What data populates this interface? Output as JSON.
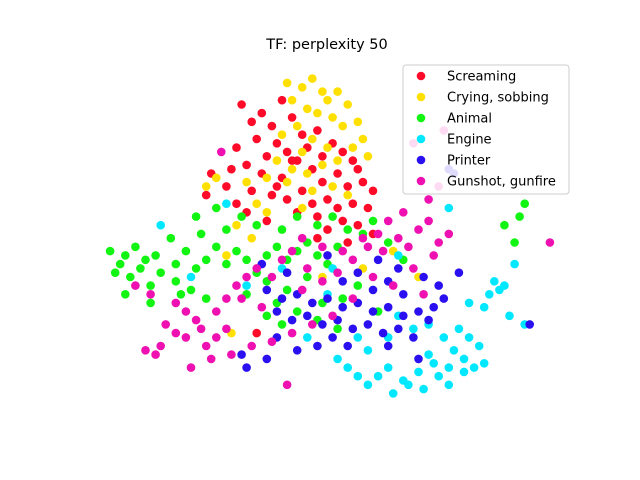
{
  "chart_data": {
    "type": "scatter",
    "title": "TF: perplexity 50",
    "xlabel": "",
    "ylabel": "",
    "axes_visible": false,
    "grid": false,
    "legend_position": "top-right",
    "xlim": [
      -45,
      45
    ],
    "ylim": [
      -40,
      40
    ],
    "series": [
      {
        "name": "Screaming",
        "color": "#ff0a28",
        "points": [
          [
            -17,
            32
          ],
          [
            -13,
            30
          ],
          [
            -9,
            33
          ],
          [
            -15,
            28
          ],
          [
            -11,
            27
          ],
          [
            -7,
            29
          ],
          [
            -5,
            25
          ],
          [
            -10,
            23
          ],
          [
            -14,
            24
          ],
          [
            -18,
            22
          ],
          [
            -12,
            20
          ],
          [
            -8,
            21
          ],
          [
            -4,
            22
          ],
          [
            -2,
            26
          ],
          [
            -6,
            19
          ],
          [
            -3,
            17
          ],
          [
            -9,
            15
          ],
          [
            -13,
            16
          ],
          [
            -16,
            18
          ],
          [
            -1,
            20
          ],
          [
            1,
            23
          ],
          [
            3,
            21
          ],
          [
            5,
            19
          ],
          [
            2,
            16
          ],
          [
            -1,
            14
          ],
          [
            4,
            13
          ],
          [
            7,
            14
          ],
          [
            6,
            17
          ],
          [
            9,
            12
          ],
          [
            -5,
            12
          ],
          [
            -8,
            10
          ],
          [
            -11,
            11
          ],
          [
            -3,
            9
          ],
          [
            0,
            10
          ],
          [
            2,
            8
          ],
          [
            5,
            9
          ],
          [
            8,
            8
          ],
          [
            -6,
            7
          ],
          [
            -2,
            6
          ],
          [
            3,
            5
          ],
          [
            -10,
            13
          ],
          [
            -15,
            12
          ],
          [
            -20,
            13
          ],
          [
            -23,
            16
          ],
          [
            -24,
            11
          ],
          [
            -18,
            9
          ],
          [
            -16,
            7
          ],
          [
            -12,
            5
          ],
          [
            0,
            3
          ],
          [
            6,
            4
          ],
          [
            9,
            2
          ],
          [
            -2,
            1
          ],
          [
            4,
            0
          ],
          [
            -14,
            -21
          ],
          [
            -7,
            19
          ],
          [
            -19,
            17
          ]
        ]
      },
      {
        "name": "Crying, sobbing",
        "color": "#ffe000",
        "points": [
          [
            -8,
            37
          ],
          [
            -5,
            36
          ],
          [
            -3,
            38
          ],
          [
            -1,
            35
          ],
          [
            -7,
            33
          ],
          [
            -4,
            31
          ],
          [
            0,
            33
          ],
          [
            2,
            35
          ],
          [
            4,
            32
          ],
          [
            -2,
            30
          ],
          [
            1,
            29
          ],
          [
            3,
            27
          ],
          [
            -6,
            27
          ],
          [
            -9,
            25
          ],
          [
            -3,
            24
          ],
          [
            0,
            22
          ],
          [
            2,
            19
          ],
          [
            -1,
            18
          ],
          [
            -4,
            16
          ],
          [
            -7,
            17
          ],
          [
            -10,
            19
          ],
          [
            -12,
            15
          ],
          [
            6,
            28
          ],
          [
            7,
            24
          ],
          [
            5,
            22
          ],
          [
            8,
            20
          ],
          [
            -5,
            21
          ],
          [
            -8,
            14
          ],
          [
            -3,
            12
          ],
          [
            1,
            13
          ],
          [
            -16,
            14
          ],
          [
            -22,
            15
          ],
          [
            -24,
            13
          ],
          [
            -14,
            9
          ],
          [
            -12,
            7
          ],
          [
            -5,
            8
          ],
          [
            4,
            11
          ],
          [
            -18,
            4
          ],
          [
            -20,
            -3
          ],
          [
            -15,
            1
          ],
          [
            -1,
            -8
          ],
          [
            7,
            -6
          ],
          [
            13,
            -2
          ],
          [
            18,
            -8
          ],
          [
            -19,
            -21
          ]
        ]
      },
      {
        "name": "Animal",
        "color": "#12f512",
        "points": [
          [
            -43,
            -2
          ],
          [
            -40,
            -3
          ],
          [
            -41,
            -5
          ],
          [
            -38,
            -1
          ],
          [
            -36,
            -4
          ],
          [
            -42,
            -7
          ],
          [
            -39,
            -8
          ],
          [
            -37,
            -6
          ],
          [
            -34,
            -3
          ],
          [
            -33,
            -7
          ],
          [
            -30,
            -5
          ],
          [
            -28,
            -2
          ],
          [
            -26,
            -6
          ],
          [
            -24,
            -4
          ],
          [
            -22,
            -1
          ],
          [
            -20,
            -5
          ],
          [
            -18,
            -2
          ],
          [
            -16,
            -4
          ],
          [
            -14,
            -7
          ],
          [
            -12,
            -3
          ],
          [
            -10,
            -1
          ],
          [
            -8,
            -4
          ],
          [
            -6,
            -2
          ],
          [
            -4,
            0
          ],
          [
            -2,
            -3
          ],
          [
            0,
            -5
          ],
          [
            2,
            -1
          ],
          [
            -35,
            -10
          ],
          [
            -30,
            -9
          ],
          [
            -27,
            -11
          ],
          [
            -31,
            1
          ],
          [
            -25,
            2
          ],
          [
            -20,
            3
          ],
          [
            -17,
            6
          ],
          [
            -14,
            4
          ],
          [
            -9,
            3
          ],
          [
            -6,
            6
          ],
          [
            -2,
            4
          ],
          [
            1,
            6
          ],
          [
            4,
            3
          ],
          [
            -26,
            6
          ],
          [
            -22,
            8
          ],
          [
            -12,
            -9
          ],
          [
            -8,
            -11
          ],
          [
            -4,
            -8
          ],
          [
            -16,
            -12
          ],
          [
            -10,
            -14
          ],
          [
            -6,
            -16
          ],
          [
            -2,
            -18
          ],
          [
            -12,
            -17
          ],
          [
            3,
            -13
          ],
          [
            6,
            -10
          ],
          [
            2,
            -20
          ],
          [
            -1,
            -14
          ],
          [
            7,
            2
          ],
          [
            9,
            5
          ],
          [
            -40,
            -12
          ],
          [
            -35,
            -14
          ],
          [
            -29,
            -12
          ],
          [
            -24,
            -13
          ],
          [
            12,
            0
          ],
          [
            15,
            -4
          ],
          [
            35,
            4
          ],
          [
            37,
            0
          ],
          [
            38,
            6
          ],
          [
            39,
            9
          ],
          [
            -9,
            -19
          ],
          [
            10,
            -16
          ]
        ]
      },
      {
        "name": "Engine",
        "color": "#00e8ff",
        "points": [
          [
            -33,
            4
          ],
          [
            -20,
            9
          ],
          [
            -27,
            -8
          ],
          [
            1,
            -6
          ],
          [
            14,
            -3
          ],
          [
            24,
            8
          ],
          [
            6,
            -22
          ],
          [
            14,
            -17
          ],
          [
            20,
            -19
          ],
          [
            23,
            -22
          ],
          [
            25,
            -25
          ],
          [
            27,
            -27
          ],
          [
            24,
            -29
          ],
          [
            21,
            -28
          ],
          [
            18,
            -30
          ],
          [
            15,
            -32
          ],
          [
            12,
            -29
          ],
          [
            10,
            -31
          ],
          [
            8,
            -33
          ],
          [
            6,
            -31
          ],
          [
            4,
            -29
          ],
          [
            2,
            -27
          ],
          [
            26,
            -20
          ],
          [
            28,
            -22
          ],
          [
            30,
            -24
          ],
          [
            22,
            -31
          ],
          [
            19,
            -34
          ],
          [
            16,
            -33
          ],
          [
            13,
            -35
          ],
          [
            24,
            -33
          ],
          [
            27,
            -30
          ],
          [
            29,
            -29
          ],
          [
            31,
            -15
          ],
          [
            32,
            -12
          ],
          [
            34,
            -11
          ],
          [
            33,
            -9
          ],
          [
            35,
            -10
          ],
          [
            36,
            -17
          ],
          [
            39,
            -19
          ],
          [
            37,
            -5
          ],
          [
            28,
            -14
          ],
          [
            17,
            -20
          ],
          [
            -4,
            -22
          ],
          [
            -16,
            -10
          ],
          [
            0,
            -12
          ],
          [
            8,
            -25
          ],
          [
            31,
            -28
          ],
          [
            20,
            -26
          ],
          [
            12,
            -22
          ],
          [
            -9,
            -6
          ]
        ]
      },
      {
        "name": "Printer",
        "color": "#2a10f0",
        "points": [
          [
            -12,
            -11
          ],
          [
            -9,
            -13
          ],
          [
            -6,
            -12
          ],
          [
            -3,
            -14
          ],
          [
            0,
            -13
          ],
          [
            3,
            -15
          ],
          [
            6,
            -14
          ],
          [
            9,
            -16
          ],
          [
            12,
            -15
          ],
          [
            15,
            -17
          ],
          [
            18,
            -16
          ],
          [
            21,
            -15
          ],
          [
            -10,
            -16
          ],
          [
            -7,
            -18
          ],
          [
            -4,
            -17
          ],
          [
            -1,
            -19
          ],
          [
            2,
            -18
          ],
          [
            5,
            -20
          ],
          [
            8,
            -19
          ],
          [
            11,
            -21
          ],
          [
            14,
            -20
          ],
          [
            17,
            -22
          ],
          [
            20,
            -18
          ],
          [
            23,
            -13
          ],
          [
            3,
            -9
          ],
          [
            6,
            -7
          ],
          [
            9,
            -11
          ],
          [
            12,
            -9
          ],
          [
            15,
            -12
          ],
          [
            -2,
            -24
          ],
          [
            1,
            -22
          ],
          [
            4,
            -24
          ],
          [
            -6,
            -25
          ],
          [
            -10,
            -22
          ],
          [
            -12,
            -27
          ],
          [
            -16,
            -29
          ],
          [
            -17,
            -26
          ],
          [
            -13,
            -5
          ],
          [
            -8,
            -7
          ],
          [
            0,
            -3
          ],
          [
            10,
            -4
          ],
          [
            14,
            -6
          ],
          [
            19,
            -8
          ],
          [
            22,
            -10
          ],
          [
            26,
            -7
          ],
          [
            12,
            -24
          ],
          [
            18,
            -27
          ],
          [
            24,
            17
          ],
          [
            25,
            16
          ],
          [
            40,
            -19
          ]
        ]
      },
      {
        "name": "Gunshot, gunfire",
        "color": "#ee10b0",
        "points": [
          [
            -38,
            -10
          ],
          [
            -35,
            -12
          ],
          [
            -30,
            -14
          ],
          [
            -28,
            -16
          ],
          [
            -26,
            -18
          ],
          [
            -32,
            -19
          ],
          [
            -30,
            -21
          ],
          [
            -28,
            -22
          ],
          [
            -25,
            -20
          ],
          [
            -22,
            -16
          ],
          [
            -20,
            -13
          ],
          [
            -18,
            -10
          ],
          [
            -16,
            -8
          ],
          [
            -14,
            -6
          ],
          [
            -11,
            -8
          ],
          [
            -9,
            -4
          ],
          [
            -7,
            -2
          ],
          [
            -4,
            -6
          ],
          [
            -1,
            -9
          ],
          [
            2,
            -7
          ],
          [
            5,
            -4
          ],
          [
            8,
            -1
          ],
          [
            10,
            2
          ],
          [
            12,
            5
          ],
          [
            14,
            1
          ],
          [
            16,
            -1
          ],
          [
            18,
            3
          ],
          [
            20,
            5
          ],
          [
            22,
            0
          ],
          [
            24,
            2
          ],
          [
            21,
            -3
          ],
          [
            17,
            -6
          ],
          [
            13,
            -10
          ],
          [
            9,
            -8
          ],
          [
            5,
            -13
          ],
          [
            1,
            -17
          ],
          [
            -3,
            -19
          ],
          [
            -7,
            -21
          ],
          [
            -11,
            -23
          ],
          [
            -15,
            -24
          ],
          [
            -19,
            -26
          ],
          [
            -23,
            -27
          ],
          [
            -27,
            -29
          ],
          [
            -33,
            -24
          ],
          [
            -36,
            -25
          ],
          [
            -34,
            -26
          ],
          [
            -8,
            -33
          ],
          [
            -21,
            21
          ],
          [
            20,
            10
          ],
          [
            22,
            13
          ],
          [
            23,
            26
          ],
          [
            17,
            23
          ],
          [
            -20,
            -20
          ],
          [
            -22,
            -22
          ],
          [
            -24,
            -24
          ],
          [
            -17,
            -13
          ],
          [
            -13,
            -15
          ],
          [
            -5,
            -11
          ],
          [
            3,
            -2
          ],
          [
            7,
            1
          ],
          [
            11,
            -2
          ],
          [
            15,
            7
          ],
          [
            19,
            -12
          ],
          [
            -5,
            1
          ],
          [
            -1,
            -1
          ],
          [
            44,
            0
          ]
        ]
      }
    ]
  }
}
